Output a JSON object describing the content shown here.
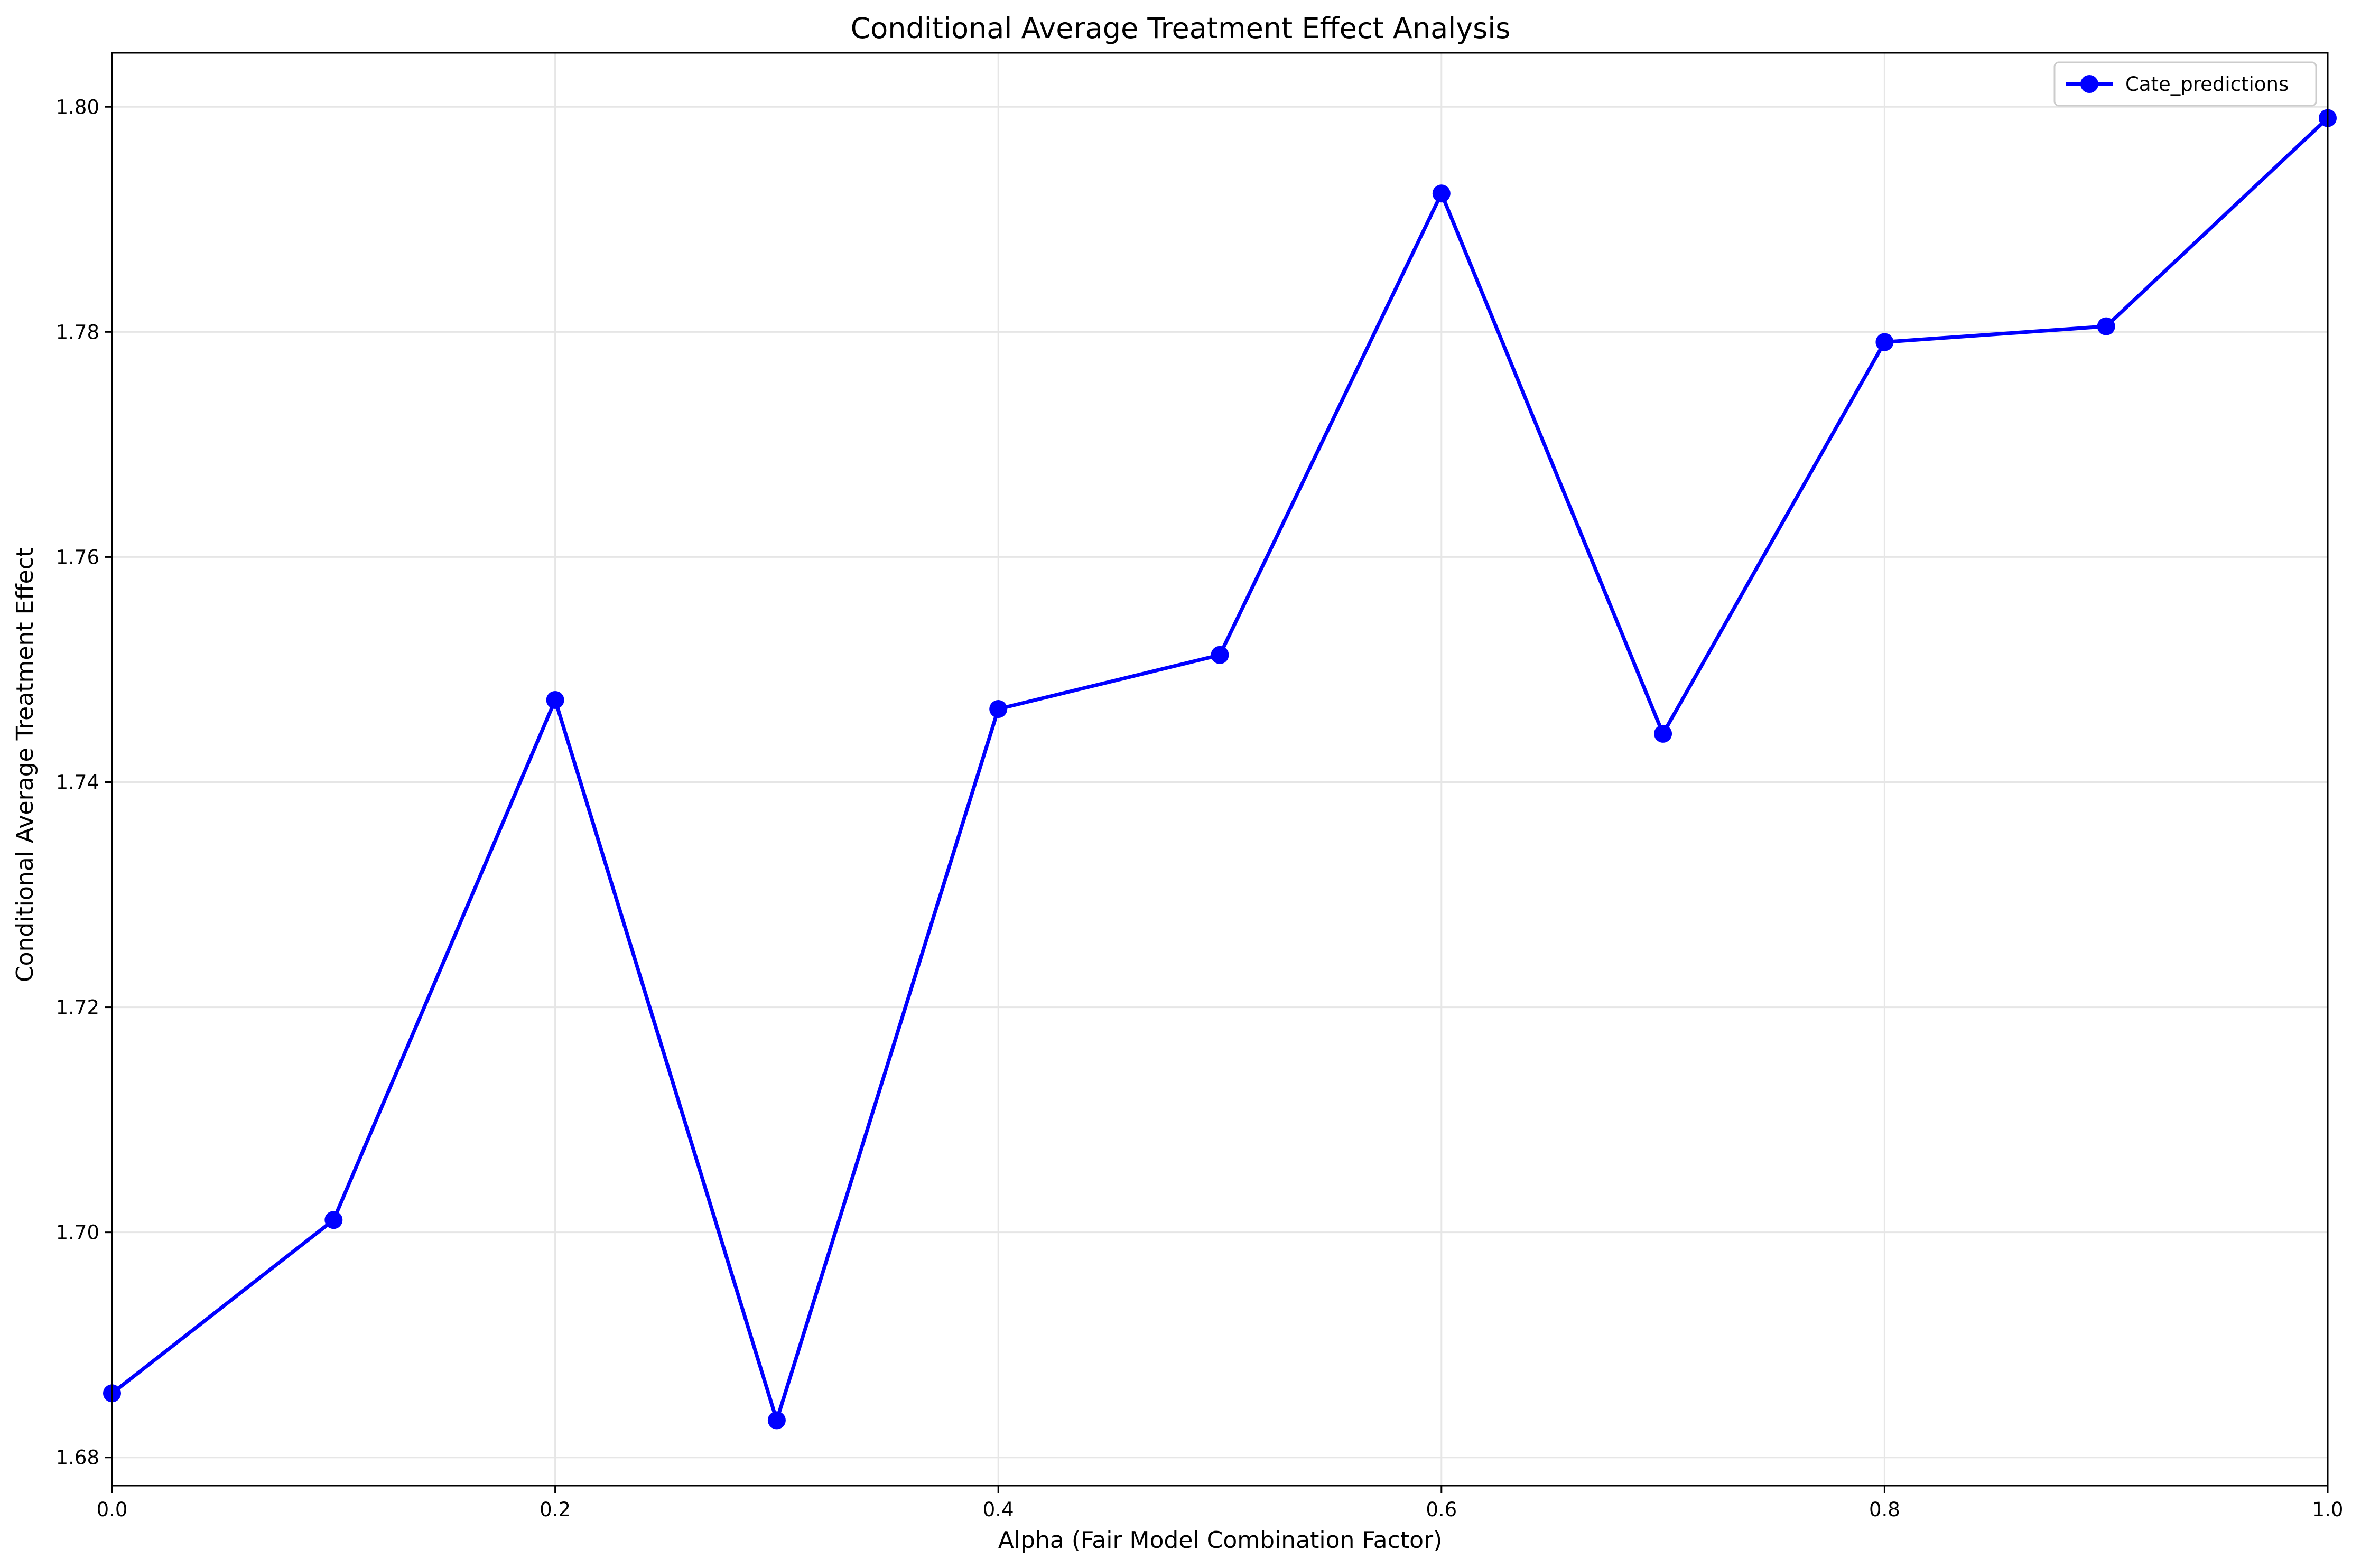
{
  "chart_data": {
    "type": "line",
    "title": "Conditional Average Treatment Effect Analysis",
    "xlabel": "Alpha (Fair Model Combination Factor)",
    "ylabel": "Conditional Average Treatment Effect",
    "xlim": [
      0.0,
      1.0
    ],
    "ylim": [
      1.6775,
      1.8048
    ],
    "x_ticks": [
      0.0,
      0.2,
      0.4,
      0.6,
      0.8,
      1.0
    ],
    "x_tick_labels": [
      "0.0",
      "0.2",
      "0.4",
      "0.6",
      "0.8",
      "1.0"
    ],
    "y_ticks": [
      1.68,
      1.7,
      1.72,
      1.74,
      1.76,
      1.78,
      1.8
    ],
    "y_tick_labels": [
      "1.68",
      "1.70",
      "1.72",
      "1.74",
      "1.76",
      "1.78",
      "1.80"
    ],
    "grid": true,
    "legend_position": "top-right",
    "x": [
      0.0,
      0.1,
      0.2,
      0.3,
      0.4,
      0.5,
      0.6,
      0.7,
      0.8,
      0.9,
      1.0
    ],
    "series": [
      {
        "name": "Cate_predictions",
        "color": "#0000ff",
        "marker": "circle",
        "values": [
          1.6857,
          1.7011,
          1.7473,
          1.6833,
          1.7465,
          1.7513,
          1.7923,
          1.7443,
          1.7791,
          1.7805,
          1.799
        ]
      }
    ]
  }
}
